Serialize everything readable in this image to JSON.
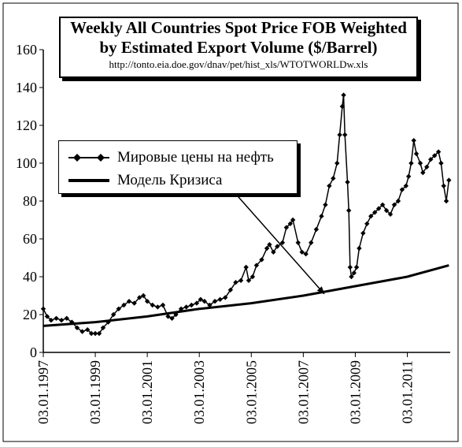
{
  "chart_data": {
    "type": "line",
    "title": "Weekly All Countries Spot Price FOB Weighted",
    "subtitle": "by Estimated Export Volume  ($/Barrel)",
    "source": "http://tonto.eia.doe.gov/dnav/pet/hist_xls/WTOTWORLDw.xls",
    "xlabel": "",
    "ylabel": "",
    "xlim": [
      1997.0,
      2012.65
    ],
    "ylim": [
      0,
      160
    ],
    "yticks": [
      0,
      20,
      40,
      60,
      80,
      100,
      120,
      140,
      160
    ],
    "xticks": [
      {
        "label": "03.01.1997",
        "value": 1997.0
      },
      {
        "label": "03.01.1999",
        "value": 1999.0
      },
      {
        "label": "03.01.2001",
        "value": 2001.0
      },
      {
        "label": "03.01.2003",
        "value": 2003.0
      },
      {
        "label": "03.01.2005",
        "value": 2005.0
      },
      {
        "label": "03.01.2007",
        "value": 2007.0
      },
      {
        "label": "03.01.2009",
        "value": 2009.0
      },
      {
        "label": "03.01.2011",
        "value": 2011.0
      }
    ],
    "grid": false,
    "legend_position": "upper-left",
    "series": [
      {
        "name": "Мировые цены на нефть",
        "color": "#000000",
        "marker": "diamond",
        "x": [
          1997.0,
          1997.15,
          1997.3,
          1997.5,
          1997.7,
          1997.9,
          1998.1,
          1998.3,
          1998.5,
          1998.7,
          1998.85,
          1999.0,
          1999.15,
          1999.3,
          1999.5,
          1999.7,
          1999.9,
          2000.1,
          2000.3,
          2000.5,
          2000.7,
          2000.85,
          2001.0,
          2001.2,
          2001.4,
          2001.6,
          2001.8,
          2001.95,
          2002.1,
          2002.3,
          2002.5,
          2002.7,
          2002.9,
          2003.05,
          2003.2,
          2003.4,
          2003.6,
          2003.8,
          2004.0,
          2004.2,
          2004.4,
          2004.6,
          2004.8,
          2004.9,
          2005.05,
          2005.2,
          2005.4,
          2005.6,
          2005.7,
          2005.85,
          2006.0,
          2006.2,
          2006.35,
          2006.5,
          2006.6,
          2006.8,
          2006.95,
          2007.1,
          2007.3,
          2007.5,
          2007.7,
          2007.85,
          2008.0,
          2008.15,
          2008.3,
          2008.4,
          2008.5,
          2008.55,
          2008.6,
          2008.7,
          2008.75,
          2008.8,
          2008.85,
          2008.95,
          2009.05,
          2009.15,
          2009.3,
          2009.45,
          2009.6,
          2009.75,
          2009.9,
          2010.05,
          2010.2,
          2010.35,
          2010.5,
          2010.65,
          2010.8,
          2010.95,
          2011.05,
          2011.15,
          2011.25,
          2011.35,
          2011.5,
          2011.6,
          2011.75,
          2011.9,
          2012.05,
          2012.2,
          2012.3,
          2012.4,
          2012.5,
          2012.6
        ],
        "values": [
          23,
          19,
          17,
          18,
          17,
          18,
          16,
          13,
          11,
          12,
          10,
          10,
          10,
          13,
          16,
          20,
          23,
          25,
          27,
          26,
          29,
          30,
          27,
          25,
          24,
          25,
          19,
          18,
          20,
          23,
          24,
          25,
          26,
          28,
          27,
          25,
          27,
          28,
          29,
          33,
          37,
          38,
          45,
          38,
          40,
          46,
          49,
          55,
          57,
          53,
          56,
          58,
          66,
          68,
          70,
          58,
          53,
          52,
          58,
          65,
          72,
          78,
          88,
          92,
          100,
          115,
          130,
          136,
          115,
          90,
          75,
          45,
          40,
          42,
          45,
          55,
          63,
          68,
          72,
          74,
          76,
          78,
          75,
          73,
          78,
          80,
          86,
          88,
          93,
          100,
          112,
          105,
          100,
          95,
          98,
          102,
          104,
          106,
          100,
          88,
          80,
          91
        ]
      },
      {
        "name": "Модель Кризиса",
        "color": "#000000",
        "marker": "none",
        "x": [
          1997.0,
          1999.0,
          2001.0,
          2003.0,
          2005.0,
          2007.0,
          2009.0,
          2011.0,
          2012.6
        ],
        "values": [
          14,
          16,
          19,
          23,
          26,
          30,
          35,
          40,
          46
        ]
      }
    ],
    "annotations": [
      {
        "type": "arrow",
        "from": [
          2004.0,
          90
        ],
        "to": [
          2007.8,
          31
        ]
      }
    ]
  }
}
